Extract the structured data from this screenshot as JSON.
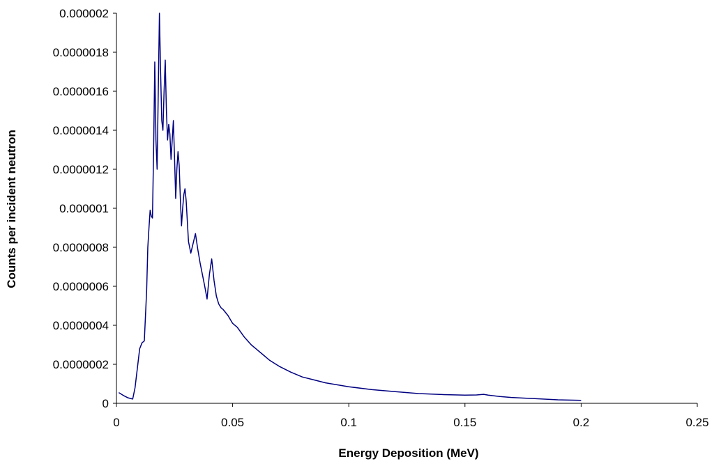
{
  "chart_data": {
    "type": "line",
    "title": "",
    "xlabel": "Energy Deposition (MeV)",
    "ylabel": "Counts per incident neutron",
    "xlim": [
      0,
      0.25
    ],
    "ylim": [
      0,
      2e-06
    ],
    "grid": false,
    "legend": "none",
    "x_ticks": [
      "0",
      "0.05",
      "0.1",
      "0.15",
      "0.2",
      "0.25"
    ],
    "y_ticks": [
      "0",
      "0.0000002",
      "0.0000004",
      "0.0000006",
      "0.0000008",
      "0.000001",
      "0.0000012",
      "0.0000014",
      "0.0000016",
      "0.0000018",
      "0.000002"
    ],
    "line_color": "#000080",
    "series": [
      {
        "x": [
          0.001,
          0.003,
          0.005,
          0.007,
          0.008,
          0.009,
          0.01,
          0.011,
          0.012,
          0.013,
          0.0135,
          0.014,
          0.0145,
          0.015,
          0.0155,
          0.016,
          0.0165,
          0.017,
          0.0175,
          0.018,
          0.0185,
          0.019,
          0.0195,
          0.02,
          0.0205,
          0.021,
          0.0215,
          0.022,
          0.0225,
          0.023,
          0.0235,
          0.024,
          0.0245,
          0.025,
          0.0255,
          0.026,
          0.0265,
          0.027,
          0.0275,
          0.028,
          0.0285,
          0.029,
          0.0295,
          0.03,
          0.031,
          0.032,
          0.033,
          0.034,
          0.035,
          0.036,
          0.037,
          0.038,
          0.039,
          0.04,
          0.041,
          0.042,
          0.043,
          0.044,
          0.045,
          0.046,
          0.048,
          0.05,
          0.052,
          0.055,
          0.058,
          0.06,
          0.063,
          0.066,
          0.07,
          0.075,
          0.08,
          0.085,
          0.09,
          0.1,
          0.11,
          0.12,
          0.13,
          0.14,
          0.15,
          0.155,
          0.158,
          0.16,
          0.165,
          0.17,
          0.18,
          0.19,
          0.2
        ],
        "y": [
          5.5e-08,
          4e-08,
          2.8e-08,
          2.2e-08,
          8e-08,
          1.8e-07,
          2.8e-07,
          3.1e-07,
          3.2e-07,
          5.8e-07,
          8e-07,
          9e-07,
          9.9e-07,
          9.6e-07,
          9.5e-07,
          1.3e-06,
          1.75e-06,
          1.35e-06,
          1.2e-06,
          1.6e-06,
          2e-06,
          1.7e-06,
          1.45e-06,
          1.4e-06,
          1.6e-06,
          1.76e-06,
          1.5e-06,
          1.35e-06,
          1.43e-06,
          1.38e-06,
          1.25e-06,
          1.35e-06,
          1.45e-06,
          1.26e-06,
          1.05e-06,
          1.2e-06,
          1.29e-06,
          1.22e-06,
          1.05e-06,
          9.1e-07,
          1e-06,
          1.07e-06,
          1.1e-06,
          1.04e-06,
          8.3e-07,
          7.7e-07,
          8.2e-07,
          8.7e-07,
          7.9e-07,
          7.2e-07,
          6.6e-07,
          6e-07,
          5.35e-07,
          6.6e-07,
          7.4e-07,
          6.3e-07,
          5.5e-07,
          5.1e-07,
          4.9e-07,
          4.8e-07,
          4.5e-07,
          4.1e-07,
          3.9e-07,
          3.4e-07,
          3e-07,
          2.8e-07,
          2.5e-07,
          2.2e-07,
          1.9e-07,
          1.6e-07,
          1.35e-07,
          1.2e-07,
          1.05e-07,
          8.5e-08,
          7e-08,
          6e-08,
          5e-08,
          4.5e-08,
          4.2e-08,
          4.3e-08,
          4.6e-08,
          4.2e-08,
          3.5e-08,
          3e-08,
          2.4e-08,
          1.8e-08,
          1.5e-08
        ]
      }
    ]
  }
}
